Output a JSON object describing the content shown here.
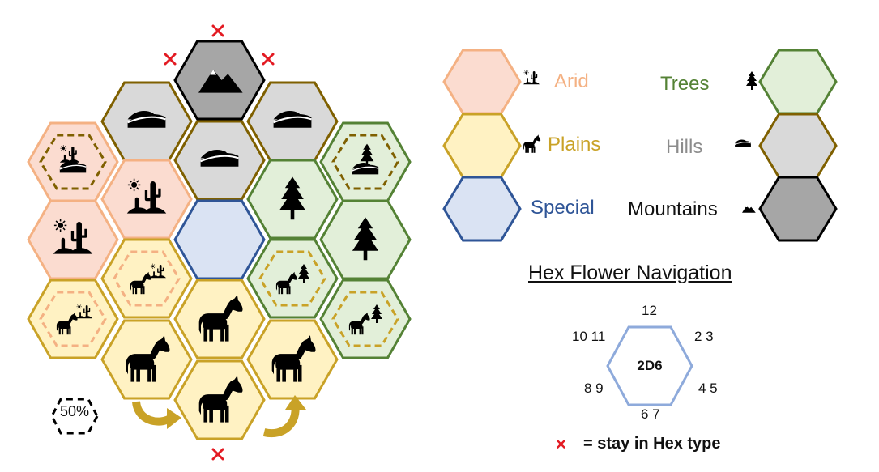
{
  "colors": {
    "arid_fill": "#fbdcd0",
    "arid_stroke": "#f4b183",
    "plains_fill": "#fff2c3",
    "plains_stroke": "#c9a227",
    "special_fill": "#dae3f3",
    "special_stroke": "#2f5597",
    "trees_fill": "#e2efd9",
    "trees_stroke": "#548235",
    "hills_fill": "#d9d9d9",
    "hills_stroke": "#7f6000",
    "mountains_fill": "#a6a6a6",
    "mountains_stroke": "#000000",
    "nav_hex_stroke": "#8eaadb",
    "arrow": "#c9a227",
    "stay_marker": "#e31b23"
  },
  "legend": {
    "arid": "Arid",
    "plains": "Plains",
    "special": "Special",
    "trees": "Trees",
    "hills": "Hills",
    "mountains": "Mountains"
  },
  "hex_grid": {
    "cells": [
      {
        "id": "mountain-top",
        "type": "mountains",
        "icon": "mountain-icon"
      },
      {
        "id": "hills-upper-left",
        "type": "hills",
        "icon": "hills-icon"
      },
      {
        "id": "hills-upper-right",
        "type": "hills",
        "icon": "hills-icon"
      },
      {
        "id": "hills-center",
        "type": "hills",
        "icon": "hills-icon"
      },
      {
        "id": "arid-hills-50",
        "type": "arid",
        "icon": "arid-hills-icon",
        "inner": "hills"
      },
      {
        "id": "arid-desert-upper",
        "type": "arid",
        "icon": "cactus-sun-icon"
      },
      {
        "id": "trees-hills-50",
        "type": "trees",
        "icon": "tree-hills-icon",
        "inner": "hills"
      },
      {
        "id": "arid-desert-left",
        "type": "arid",
        "icon": "cactus-sun-icon"
      },
      {
        "id": "special-center",
        "type": "special",
        "icon": ""
      },
      {
        "id": "trees-center",
        "type": "trees",
        "icon": "tree-icon"
      },
      {
        "id": "trees-right",
        "type": "trees",
        "icon": "tree-icon"
      },
      {
        "id": "plains-arid-50-upper",
        "type": "plains",
        "icon": "horse-cactus-icon",
        "inner": "arid"
      },
      {
        "id": "trees-plains-50-upper",
        "type": "trees",
        "icon": "horse-tree-icon",
        "inner": "plains"
      },
      {
        "id": "plains-arid-50-left",
        "type": "plains",
        "icon": "horse-cactus-icon",
        "inner": "arid"
      },
      {
        "id": "plains-center",
        "type": "plains",
        "icon": "horse-icon"
      },
      {
        "id": "trees-plains-50-right",
        "type": "trees",
        "icon": "horse-tree-icon",
        "inner": "plains"
      },
      {
        "id": "plains-lower-left",
        "type": "plains",
        "icon": "horse-icon"
      },
      {
        "id": "plains-lower-right",
        "type": "plains",
        "icon": "horse-icon"
      },
      {
        "id": "plains-bottom",
        "type": "plains",
        "icon": "horse-icon"
      }
    ],
    "fifty_percent_label": "50%"
  },
  "navigation": {
    "title": "Hex Flower Navigation",
    "center_label": "2D6",
    "top": "12",
    "top_right": "2 3",
    "bottom_right": "4 5",
    "bottom": "6 7",
    "bottom_left": "8 9",
    "top_left": "10 11",
    "stay_marker": "×",
    "stay_label": "= stay in Hex type"
  }
}
